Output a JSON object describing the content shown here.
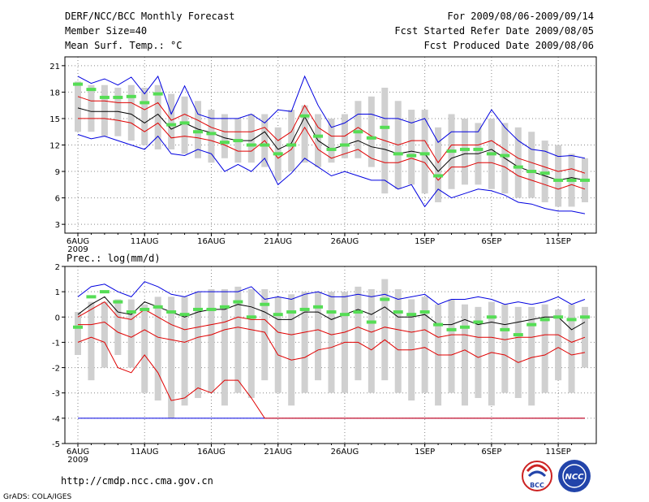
{
  "header": {
    "title": "DERF/NCC/BCC Monthly Forecast",
    "member_size": "Member Size=40",
    "variable": "Mean Surf. Temp.: °C",
    "period": "For 2009/08/06-2009/09/14",
    "start_date": "Fcst Started Refer Date 2009/08/05",
    "produced_date": "Fcst Produced Date 2009/08/06"
  },
  "footer": {
    "url": "http://cmdp.ncc.cma.gov.cn",
    "credit": "GrADS: COLA/IGES",
    "logo_bcc": "BCC",
    "logo_ncc": "NCC"
  },
  "colors": {
    "spread": "#d0d0d0",
    "mean": "#000000",
    "envelope_red": "#e00000",
    "envelope_blue": "#0000e0",
    "median": "#55dd55",
    "grid": "#888888"
  },
  "chart_data": [
    {
      "type": "line",
      "title": "Mean Surf. Temp.: °C",
      "days": 39,
      "xticks": [
        {
          "day": 0,
          "label": "6AUG",
          "sublabel": "2009"
        },
        {
          "day": 5,
          "label": "11AUG"
        },
        {
          "day": 10,
          "label": "16AUG"
        },
        {
          "day": 15,
          "label": "21AUG"
        },
        {
          "day": 20,
          "label": "26AUG"
        },
        {
          "day": 26,
          "label": "1SEP"
        },
        {
          "day": 31,
          "label": "6SEP"
        },
        {
          "day": 36,
          "label": "11SEP"
        }
      ],
      "ylim": [
        2,
        22
      ],
      "yticks": [
        3,
        6,
        9,
        12,
        15,
        18,
        21
      ],
      "grid": true,
      "series": [
        {
          "name": "spread_high",
          "values": [
            19.2,
            18.8,
            18.8,
            18.5,
            18.8,
            18.5,
            18.8,
            17.8,
            17.5,
            17.0,
            16.0,
            15.5,
            15.0,
            15.5,
            15.5,
            14.0,
            16.0,
            16.5,
            15.5,
            15.0,
            15.5,
            17.0,
            17.5,
            18.5,
            17.0,
            16.0,
            16.0,
            14.0,
            15.5,
            15.0,
            14.5,
            15.0,
            14.5,
            14.0,
            13.5,
            12.5,
            12.0,
            11.0,
            10.5
          ]
        },
        {
          "name": "spread_low",
          "values": [
            13.5,
            13.5,
            13.0,
            13.0,
            12.5,
            12.0,
            11.5,
            11.5,
            11.0,
            10.5,
            10.0,
            10.5,
            10.0,
            10.0,
            9.5,
            8.0,
            9.0,
            10.0,
            9.5,
            10.0,
            10.5,
            10.5,
            9.5,
            6.5,
            7.0,
            7.5,
            6.5,
            5.5,
            7.0,
            7.5,
            7.5,
            7.0,
            6.5,
            6.0,
            6.0,
            5.5,
            5.0,
            5.0,
            5.5
          ]
        },
        {
          "name": "blue_max",
          "values": [
            19.8,
            19.0,
            19.5,
            18.8,
            19.7,
            17.8,
            19.8,
            15.5,
            18.7,
            15.5,
            15.0,
            15.0,
            15.0,
            15.5,
            14.5,
            16.0,
            15.8,
            19.8,
            16.5,
            14.0,
            14.5,
            15.5,
            15.5,
            15.0,
            15.0,
            14.5,
            15.0,
            12.3,
            13.5,
            13.5,
            13.5,
            16.0,
            14.0,
            12.5,
            11.5,
            11.3,
            10.7,
            10.8,
            10.5
          ]
        },
        {
          "name": "red_high",
          "values": [
            17.5,
            17.0,
            17.0,
            16.8,
            16.8,
            16.0,
            16.8,
            14.8,
            15.5,
            14.8,
            14.0,
            13.5,
            13.5,
            13.5,
            14.0,
            12.5,
            13.5,
            16.5,
            14.0,
            13.0,
            13.0,
            14.0,
            13.0,
            12.5,
            12.0,
            12.5,
            12.5,
            10.0,
            12.0,
            12.0,
            12.0,
            12.5,
            11.5,
            10.5,
            10.0,
            9.5,
            9.0,
            9.3,
            8.8
          ]
        },
        {
          "name": "mean",
          "values": [
            16.2,
            15.8,
            15.8,
            15.8,
            15.5,
            14.5,
            15.5,
            13.8,
            14.5,
            13.8,
            13.4,
            12.8,
            12.5,
            12.5,
            13.5,
            11.5,
            12.2,
            15.2,
            12.5,
            11.5,
            12.0,
            12.5,
            11.8,
            11.5,
            11.0,
            11.3,
            11.0,
            9.0,
            10.5,
            11.0,
            11.0,
            11.5,
            10.5,
            9.5,
            9.0,
            8.5,
            8.0,
            8.3,
            8.0
          ]
        },
        {
          "name": "red_low",
          "values": [
            15.0,
            15.0,
            15.0,
            14.8,
            14.5,
            13.5,
            14.5,
            12.8,
            13.0,
            12.8,
            12.5,
            12.0,
            11.3,
            11.3,
            12.5,
            10.5,
            11.5,
            14.0,
            11.5,
            10.5,
            11.0,
            11.5,
            10.5,
            10.0,
            10.0,
            10.5,
            10.0,
            8.0,
            9.5,
            9.5,
            10.0,
            10.0,
            9.5,
            8.5,
            8.0,
            7.5,
            7.0,
            7.5,
            7.0
          ]
        },
        {
          "name": "blue_min",
          "values": [
            13.2,
            12.7,
            13.0,
            12.5,
            12.0,
            11.5,
            13.0,
            11.0,
            10.8,
            11.5,
            11.0,
            9.0,
            9.8,
            9.0,
            10.5,
            7.5,
            8.8,
            10.5,
            9.5,
            8.5,
            9.0,
            8.5,
            8.0,
            8.0,
            7.0,
            7.5,
            5.0,
            7.0,
            6.0,
            6.5,
            7.0,
            6.8,
            6.3,
            5.5,
            5.3,
            4.8,
            4.5,
            4.5,
            4.2
          ]
        },
        {
          "name": "median",
          "values": [
            18.9,
            18.3,
            17.4,
            17.4,
            17.5,
            16.8,
            17.8,
            14.3,
            14.5,
            13.5,
            13.3,
            12.3,
            12.5,
            12.0,
            12.0,
            11.0,
            12.0,
            15.3,
            13.0,
            11.5,
            12.0,
            13.5,
            12.8,
            14.0,
            11.0,
            10.8,
            11.0,
            8.5,
            11.3,
            11.5,
            11.5,
            11.0,
            10.8,
            9.5,
            9.0,
            8.8,
            8.0,
            8.0,
            8.0
          ]
        }
      ]
    },
    {
      "type": "line",
      "title": "Prec.: log(mm/d)",
      "days": 39,
      "xticks": [
        {
          "day": 0,
          "label": "6AUG",
          "sublabel": "2009"
        },
        {
          "day": 5,
          "label": "11AUG"
        },
        {
          "day": 10,
          "label": "16AUG"
        },
        {
          "day": 15,
          "label": "21AUG"
        },
        {
          "day": 20,
          "label": "26AUG"
        },
        {
          "day": 26,
          "label": "1SEP"
        },
        {
          "day": 31,
          "label": "6SEP"
        },
        {
          "day": 36,
          "label": "11SEP"
        }
      ],
      "ylim": [
        -5,
        2
      ],
      "yticks": [
        -5,
        -4,
        -3,
        -2,
        -1,
        0,
        1,
        2
      ],
      "grid": true,
      "series": [
        {
          "name": "spread_high",
          "values": [
            0.2,
            0.6,
            0.6,
            0.7,
            0.7,
            0.5,
            0.8,
            0.8,
            0.8,
            1.0,
            1.1,
            1.1,
            1.2,
            1.1,
            1.1,
            0.8,
            0.9,
            1.0,
            1.0,
            1.0,
            1.0,
            1.2,
            1.1,
            1.5,
            1.1,
            0.7,
            0.8,
            0.5,
            0.7,
            0.5,
            0.4,
            0.6,
            0.5,
            0.4,
            0.4,
            0.5,
            0.3,
            0.5,
            0.4
          ]
        },
        {
          "name": "spread_low",
          "values": [
            -1.5,
            -2.5,
            -2.0,
            -1.5,
            -2.0,
            -3.0,
            -3.3,
            -4.0,
            -3.5,
            -3.2,
            -3.0,
            -3.5,
            -3.0,
            -3.2,
            -2.5,
            -3.0,
            -3.5,
            -3.0,
            -2.5,
            -3.0,
            -3.0,
            -2.5,
            -3.0,
            -2.5,
            -3.0,
            -3.3,
            -3.0,
            -3.5,
            -3.0,
            -3.5,
            -3.2,
            -3.5,
            -3.0,
            -3.2,
            -3.5,
            -3.0,
            -2.5,
            -3.0,
            -2.0
          ]
        },
        {
          "name": "blue_max",
          "values": [
            0.8,
            1.2,
            1.3,
            1.0,
            0.8,
            1.4,
            1.2,
            0.9,
            0.8,
            1.0,
            1.0,
            1.0,
            1.0,
            1.2,
            0.7,
            0.8,
            0.7,
            0.9,
            1.0,
            0.8,
            0.8,
            0.9,
            0.8,
            0.9,
            0.7,
            0.8,
            0.9,
            0.5,
            0.7,
            0.7,
            0.8,
            0.7,
            0.5,
            0.6,
            0.5,
            0.6,
            0.8,
            0.5,
            0.7
          ]
        },
        {
          "name": "mean",
          "values": [
            0.1,
            0.5,
            0.8,
            0.2,
            0.1,
            0.6,
            0.4,
            0.2,
            0.0,
            0.2,
            0.3,
            0.3,
            0.5,
            0.4,
            0.2,
            -0.1,
            -0.1,
            0.2,
            0.2,
            -0.1,
            0.1,
            0.3,
            0.1,
            0.4,
            0.0,
            0.0,
            0.1,
            -0.3,
            -0.3,
            -0.1,
            -0.3,
            -0.2,
            -0.3,
            -0.2,
            -0.1,
            0.0,
            0.0,
            -0.5,
            -0.2
          ]
        },
        {
          "name": "red_high",
          "values": [
            0.0,
            0.3,
            0.6,
            0.0,
            -0.1,
            0.3,
            0.0,
            -0.3,
            -0.5,
            -0.4,
            -0.3,
            -0.2,
            0.0,
            -0.1,
            -0.1,
            -0.6,
            -0.7,
            -0.6,
            -0.5,
            -0.7,
            -0.6,
            -0.4,
            -0.6,
            -0.4,
            -0.5,
            -0.6,
            -0.5,
            -0.8,
            -0.7,
            -0.7,
            -0.8,
            -0.8,
            -0.9,
            -0.8,
            -0.8,
            -0.7,
            -0.7,
            -1.0,
            -0.8
          ]
        },
        {
          "name": "red_low",
          "values": [
            -1.0,
            -0.8,
            -1.0,
            -2.0,
            -2.2,
            -1.5,
            -2.2,
            -3.3,
            -3.2,
            -2.8,
            -3.0,
            -2.5,
            -2.5,
            -3.2,
            -4.0,
            -4.0,
            -4.0,
            -4.0,
            -4.0,
            -4.0,
            -4.0,
            -4.0,
            -4.0,
            -4.0,
            -4.0,
            -4.0,
            -4.0,
            -4.0,
            -4.0,
            -4.0,
            -4.0,
            -4.0,
            -4.0,
            -4.0,
            -4.0,
            -4.0,
            -4.0,
            -4.0,
            -4.0
          ]
        },
        {
          "name": "red_mid",
          "values": [
            -0.3,
            -0.3,
            -0.2,
            -0.6,
            -0.8,
            -0.5,
            -0.8,
            -0.9,
            -1.0,
            -0.8,
            -0.7,
            -0.5,
            -0.4,
            -0.5,
            -0.6,
            -1.5,
            -1.7,
            -1.6,
            -1.3,
            -1.2,
            -1.0,
            -1.0,
            -1.3,
            -0.9,
            -1.3,
            -1.3,
            -1.2,
            -1.5,
            -1.5,
            -1.3,
            -1.6,
            -1.4,
            -1.5,
            -1.8,
            -1.6,
            -1.5,
            -1.2,
            -1.5,
            -1.4
          ]
        },
        {
          "name": "blue_min",
          "values": [
            -4.0,
            -4.0,
            -4.0,
            -4.0,
            -4.0,
            -4.0,
            -4.0,
            -4.0,
            -4.0,
            -4.0,
            -4.0,
            -4.0,
            -4.0,
            -4.0,
            -4.0,
            -4.0,
            -4.0,
            -4.0,
            -4.0,
            -4.0,
            -4.0,
            -4.0,
            -4.0,
            -4.0,
            -4.0,
            -4.0,
            -4.0,
            -4.0,
            -4.0,
            -4.0,
            -4.0,
            -4.0,
            -4.0,
            -4.0,
            -4.0,
            -4.0,
            -4.0,
            -4.0,
            -4.0
          ]
        },
        {
          "name": "median",
          "values": [
            -0.4,
            0.8,
            1.0,
            0.6,
            0.2,
            0.3,
            0.4,
            0.2,
            0.1,
            0.3,
            0.3,
            0.4,
            0.6,
            0.0,
            0.5,
            0.1,
            0.2,
            0.3,
            0.4,
            0.2,
            0.1,
            0.2,
            -0.2,
            0.7,
            0.2,
            0.1,
            0.2,
            -0.3,
            -0.5,
            -0.4,
            -0.2,
            0.0,
            -0.5,
            -0.7,
            -0.3,
            -0.1,
            0.0,
            -0.1,
            0.0
          ]
        }
      ]
    }
  ]
}
